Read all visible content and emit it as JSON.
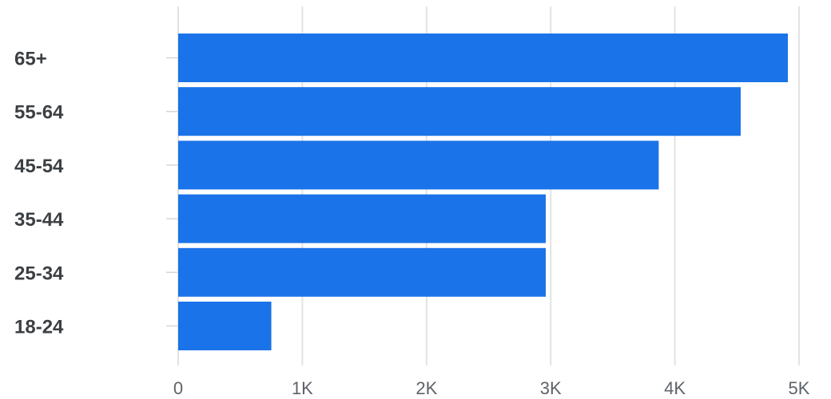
{
  "chart_data": {
    "type": "bar",
    "orientation": "horizontal",
    "categories": [
      "65+",
      "55-64",
      "45-54",
      "35-44",
      "25-34",
      "18-24"
    ],
    "values": [
      4910,
      4530,
      3870,
      2960,
      2960,
      750
    ],
    "xlim": [
      0,
      5000
    ],
    "x_ticks": [
      0,
      1000,
      2000,
      3000,
      4000,
      5000
    ],
    "x_tick_labels": [
      "0",
      "1K",
      "2K",
      "3K",
      "4K",
      "5K"
    ],
    "title": "",
    "xlabel": "",
    "ylabel": "",
    "grid": "vertical",
    "legend": "none",
    "bar_color": "#1a73e8"
  }
}
